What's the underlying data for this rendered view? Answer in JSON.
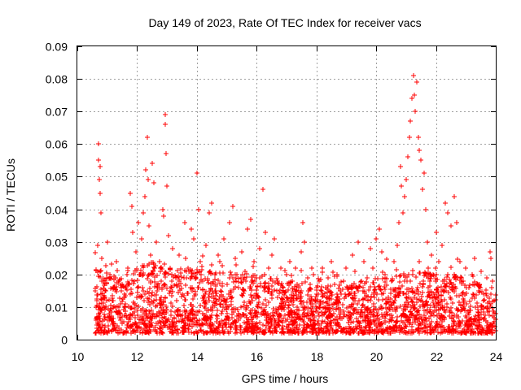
{
  "chart_data": {
    "type": "scatter",
    "title": "Day 149 of 2023, Rate Of TEC Index for receiver vacs",
    "xlabel": "GPS time / hours",
    "ylabel": "ROTI / TECUs",
    "xlim": [
      10,
      24
    ],
    "ylim": [
      0,
      0.09
    ],
    "x_ticks": [
      10,
      12,
      14,
      16,
      18,
      20,
      22,
      24
    ],
    "x_tick_labels": [
      "10",
      "12",
      "14",
      "16",
      "18",
      "20",
      "22",
      "24"
    ],
    "y_ticks": [
      0,
      0.01,
      0.02,
      0.03,
      0.04,
      0.05,
      0.06,
      0.07,
      0.08,
      0.09
    ],
    "y_tick_labels": [
      "0",
      "0.01",
      "0.02",
      "0.03",
      "0.04",
      "0.05",
      "0.06",
      "0.07",
      "0.08",
      "0.09"
    ],
    "grid": true,
    "marker": "+",
    "color": "#ff0000",
    "series": [
      {
        "name": "ROTI",
        "points": [
          [
            10.62,
            0.006
          ],
          [
            10.65,
            0.012
          ],
          [
            10.68,
            0.029
          ],
          [
            10.7,
            0.055
          ],
          [
            10.71,
            0.06
          ],
          [
            10.73,
            0.049
          ],
          [
            10.75,
            0.053
          ],
          [
            10.77,
            0.045
          ],
          [
            10.8,
            0.039
          ],
          [
            10.83,
            0.025
          ],
          [
            10.86,
            0.018
          ],
          [
            10.9,
            0.01
          ],
          [
            10.95,
            0.015
          ],
          [
            11.0,
            0.03
          ],
          [
            11.05,
            0.008
          ],
          [
            11.1,
            0.02
          ],
          [
            11.2,
            0.012
          ],
          [
            11.3,
            0.024
          ],
          [
            11.4,
            0.009
          ],
          [
            11.5,
            0.017
          ],
          [
            11.6,
            0.011
          ],
          [
            11.7,
            0.022
          ],
          [
            11.78,
            0.045
          ],
          [
            11.82,
            0.041
          ],
          [
            11.86,
            0.033
          ],
          [
            11.9,
            0.018
          ],
          [
            11.95,
            0.027
          ],
          [
            12.0,
            0.013
          ],
          [
            12.05,
            0.036
          ],
          [
            12.1,
            0.02
          ],
          [
            12.15,
            0.031
          ],
          [
            12.2,
            0.039
          ],
          [
            12.25,
            0.044
          ],
          [
            12.3,
            0.052
          ],
          [
            12.33,
            0.062
          ],
          [
            12.36,
            0.049
          ],
          [
            12.4,
            0.035
          ],
          [
            12.45,
            0.026
          ],
          [
            12.5,
            0.054
          ],
          [
            12.55,
            0.048
          ],
          [
            12.6,
            0.022
          ],
          [
            12.65,
            0.03
          ],
          [
            12.7,
            0.017
          ],
          [
            12.75,
            0.024
          ],
          [
            12.8,
            0.013
          ],
          [
            12.85,
            0.04
          ],
          [
            12.9,
            0.038
          ],
          [
            12.93,
            0.069
          ],
          [
            12.95,
            0.066
          ],
          [
            12.97,
            0.057
          ],
          [
            13.0,
            0.047
          ],
          [
            13.05,
            0.032
          ],
          [
            13.1,
            0.022
          ],
          [
            13.15,
            0.016
          ],
          [
            13.2,
            0.028
          ],
          [
            13.3,
            0.019
          ],
          [
            13.4,
            0.026
          ],
          [
            13.5,
            0.014
          ],
          [
            13.6,
            0.036
          ],
          [
            13.7,
            0.022
          ],
          [
            13.8,
            0.034
          ],
          [
            13.9,
            0.031
          ],
          [
            14.0,
            0.051
          ],
          [
            14.05,
            0.04
          ],
          [
            14.1,
            0.024
          ],
          [
            14.2,
            0.018
          ],
          [
            14.3,
            0.029
          ],
          [
            14.4,
            0.039
          ],
          [
            14.5,
            0.042
          ],
          [
            14.6,
            0.02
          ],
          [
            14.7,
            0.026
          ],
          [
            14.8,
            0.015
          ],
          [
            14.9,
            0.031
          ],
          [
            15.0,
            0.017
          ],
          [
            15.1,
            0.036
          ],
          [
            15.2,
            0.041
          ],
          [
            15.3,
            0.023
          ],
          [
            15.4,
            0.016
          ],
          [
            15.5,
            0.027
          ],
          [
            15.6,
            0.021
          ],
          [
            15.7,
            0.034
          ],
          [
            15.8,
            0.037
          ],
          [
            15.9,
            0.024
          ],
          [
            16.0,
            0.019
          ],
          [
            16.1,
            0.028
          ],
          [
            16.2,
            0.046
          ],
          [
            16.3,
            0.033
          ],
          [
            16.4,
            0.022
          ],
          [
            16.5,
            0.026
          ],
          [
            16.6,
            0.031
          ],
          [
            16.7,
            0.018
          ],
          [
            16.8,
            0.022
          ],
          [
            16.9,
            0.016
          ],
          [
            17.0,
            0.02
          ],
          [
            17.1,
            0.024
          ],
          [
            17.2,
            0.018
          ],
          [
            17.3,
            0.022
          ],
          [
            17.4,
            0.016
          ],
          [
            17.5,
            0.027
          ],
          [
            17.55,
            0.036
          ],
          [
            17.6,
            0.03
          ],
          [
            17.7,
            0.019
          ],
          [
            17.8,
            0.017
          ],
          [
            17.9,
            0.02
          ],
          [
            18.0,
            0.014
          ],
          [
            18.1,
            0.018
          ],
          [
            18.2,
            0.022
          ],
          [
            18.3,
            0.016
          ],
          [
            18.4,
            0.019
          ],
          [
            18.5,
            0.024
          ],
          [
            18.6,
            0.017
          ],
          [
            18.7,
            0.02
          ],
          [
            18.8,
            0.015
          ],
          [
            18.9,
            0.018
          ],
          [
            19.0,
            0.022
          ],
          [
            19.1,
            0.016
          ],
          [
            19.2,
            0.026
          ],
          [
            19.3,
            0.021
          ],
          [
            19.4,
            0.03
          ],
          [
            19.5,
            0.018
          ],
          [
            19.6,
            0.024
          ],
          [
            19.7,
            0.019
          ],
          [
            19.8,
            0.028
          ],
          [
            19.9,
            0.022
          ],
          [
            20.0,
            0.031
          ],
          [
            20.1,
            0.034
          ],
          [
            20.2,
            0.027
          ],
          [
            20.3,
            0.02
          ],
          [
            20.4,
            0.013
          ],
          [
            20.5,
            0.018
          ],
          [
            20.6,
            0.024
          ],
          [
            20.7,
            0.029
          ],
          [
            20.75,
            0.036
          ],
          [
            20.8,
            0.053
          ],
          [
            20.85,
            0.047
          ],
          [
            20.9,
            0.039
          ],
          [
            20.95,
            0.044
          ],
          [
            21.0,
            0.049
          ],
          [
            21.05,
            0.056
          ],
          [
            21.1,
            0.062
          ],
          [
            21.15,
            0.067
          ],
          [
            21.2,
            0.074
          ],
          [
            21.25,
            0.081
          ],
          [
            21.28,
            0.075
          ],
          [
            21.3,
            0.07
          ],
          [
            21.35,
            0.079
          ],
          [
            21.4,
            0.062
          ],
          [
            21.45,
            0.058
          ],
          [
            21.5,
            0.055
          ],
          [
            21.55,
            0.046
          ],
          [
            21.6,
            0.051
          ],
          [
            21.65,
            0.04
          ],
          [
            21.7,
            0.03
          ],
          [
            21.75,
            0.022
          ],
          [
            21.8,
            0.018
          ],
          [
            21.85,
            0.026
          ],
          [
            21.9,
            0.02
          ],
          [
            22.0,
            0.033
          ],
          [
            22.1,
            0.024
          ],
          [
            22.2,
            0.029
          ],
          [
            22.3,
            0.042
          ],
          [
            22.4,
            0.039
          ],
          [
            22.5,
            0.035
          ],
          [
            22.6,
            0.044
          ],
          [
            22.7,
            0.036
          ],
          [
            22.8,
            0.024
          ],
          [
            22.9,
            0.018
          ],
          [
            23.0,
            0.022
          ],
          [
            23.1,
            0.016
          ],
          [
            23.2,
            0.02
          ],
          [
            23.3,
            0.025
          ],
          [
            23.4,
            0.017
          ],
          [
            23.5,
            0.021
          ],
          [
            23.6,
            0.014
          ],
          [
            23.7,
            0.019
          ],
          [
            23.8,
            0.027
          ],
          [
            23.85,
            0.025
          ],
          [
            23.9,
            0.018
          ],
          [
            23.95,
            0.012
          ],
          [
            24.0,
            0.008
          ]
        ]
      }
    ],
    "band": {
      "description": "dense red cloud of + markers between 0.002 and ~0.02, spanning 10.6 to 24 h",
      "x_start": 10.6,
      "x_end": 24.0,
      "y_low": 0.002,
      "y_high_envelope": [
        [
          10.6,
          0.022
        ],
        [
          11.0,
          0.02
        ],
        [
          11.5,
          0.02
        ],
        [
          12.0,
          0.022
        ],
        [
          12.5,
          0.024
        ],
        [
          13.0,
          0.022
        ],
        [
          13.5,
          0.022
        ],
        [
          14.0,
          0.022
        ],
        [
          14.5,
          0.021
        ],
        [
          15.0,
          0.021
        ],
        [
          15.5,
          0.02
        ],
        [
          16.0,
          0.02
        ],
        [
          16.5,
          0.02
        ],
        [
          17.0,
          0.018
        ],
        [
          17.5,
          0.018
        ],
        [
          18.0,
          0.017
        ],
        [
          18.5,
          0.017
        ],
        [
          19.0,
          0.017
        ],
        [
          19.5,
          0.018
        ],
        [
          20.0,
          0.019
        ],
        [
          20.5,
          0.02
        ],
        [
          21.0,
          0.022
        ],
        [
          21.5,
          0.021
        ],
        [
          22.0,
          0.02
        ],
        [
          22.5,
          0.021
        ],
        [
          23.0,
          0.019
        ],
        [
          23.5,
          0.017
        ],
        [
          24.0,
          0.016
        ]
      ]
    }
  }
}
